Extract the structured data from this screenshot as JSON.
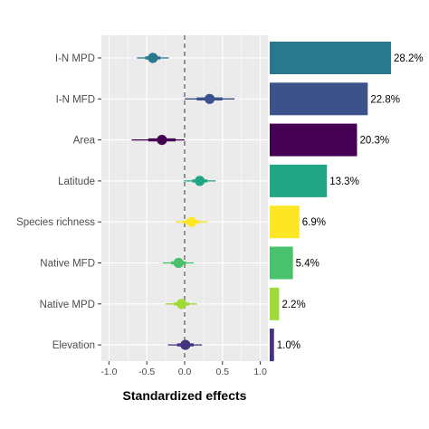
{
  "chart_data": [
    {
      "type": "scatter",
      "subtype": "coefficient-plot",
      "categories": [
        "I-N MPD",
        "I-N MFD",
        "Area",
        "Latitude",
        "Species richness",
        "Native MFD",
        "Native MPD",
        "Elevation"
      ],
      "estimates": [
        -0.42,
        0.33,
        -0.3,
        0.2,
        0.09,
        -0.08,
        -0.04,
        0.01
      ],
      "ci_inner": [
        [
          -0.52,
          -0.32
        ],
        [
          0.16,
          0.5
        ],
        [
          -0.48,
          -0.12
        ],
        [
          0.1,
          0.3
        ],
        [
          -0.02,
          0.2
        ],
        [
          -0.18,
          0.02
        ],
        [
          -0.14,
          0.06
        ],
        [
          -0.1,
          0.12
        ]
      ],
      "ci_outer": [
        [
          -0.63,
          -0.21
        ],
        [
          0.0,
          0.66
        ],
        [
          -0.7,
          0.0
        ],
        [
          -0.01,
          0.41
        ],
        [
          -0.12,
          0.3
        ],
        [
          -0.29,
          0.12
        ],
        [
          -0.25,
          0.16
        ],
        [
          -0.22,
          0.23
        ]
      ],
      "xlim": [
        -1.1,
        1.1
      ],
      "xticks": [
        "-1.0",
        "-0.5",
        "0.0",
        "0.5",
        "1.0"
      ],
      "xtick_values": [
        -1.0,
        -0.5,
        0.0,
        0.5,
        1.0
      ],
      "xlabel": "Standardized effects",
      "reference_line": 0,
      "grid": true,
      "colors": [
        "#2a788e",
        "#3b528b",
        "#440154",
        "#21a585",
        "#fde725",
        "#4ac16d",
        "#a0da39",
        "#46337e"
      ]
    },
    {
      "type": "bar",
      "orientation": "horizontal",
      "categories": [
        "I-N MPD",
        "I-N MFD",
        "Area",
        "Latitude",
        "Species richness",
        "Native MFD",
        "Native MPD",
        "Elevation"
      ],
      "values": [
        28.2,
        22.8,
        20.3,
        13.3,
        6.9,
        5.4,
        2.2,
        1.0
      ],
      "labels": [
        "28.2%",
        "22.8%",
        "20.3%",
        "13.3%",
        "6.9%",
        "5.4%",
        "2.2%",
        "1.0%"
      ],
      "xlim": [
        0,
        28.2
      ],
      "colors": [
        "#2a788e",
        "#3b528b",
        "#440154",
        "#21a585",
        "#fde725",
        "#4ac16d",
        "#a0da39",
        "#46337e"
      ]
    }
  ]
}
